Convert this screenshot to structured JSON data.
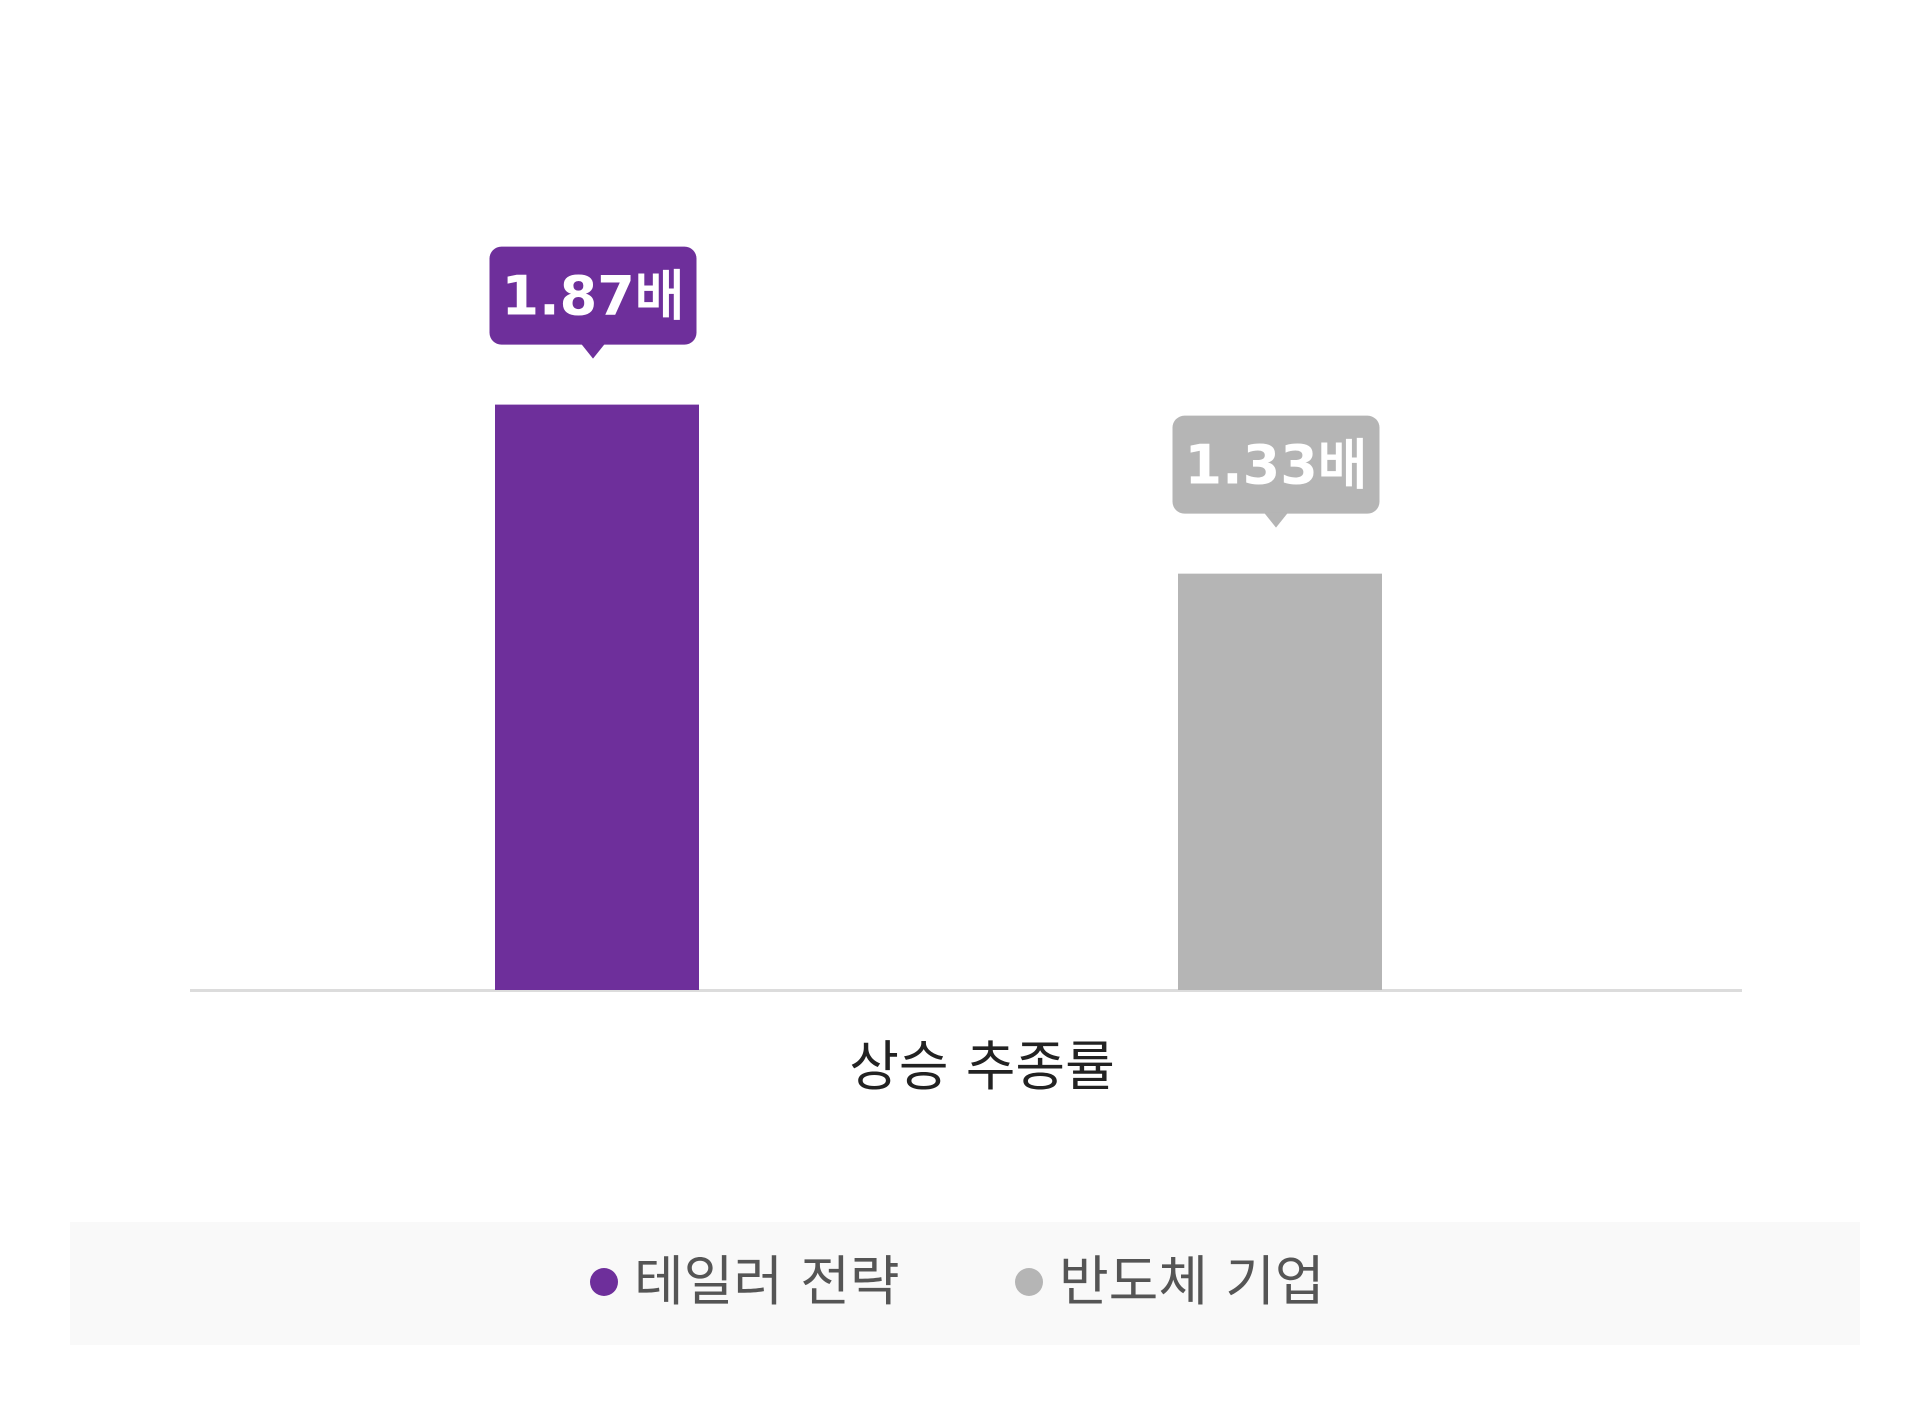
{
  "chart_data": {
    "type": "bar",
    "categories": [
      "상승 추종률"
    ],
    "series": [
      {
        "name": "테일러 전략",
        "values": [
          1.87
        ],
        "label": "1.87배",
        "color": "#6e2f9b",
        "label_text_color": "#ffffff"
      },
      {
        "name": "반도체 기업",
        "values": [
          1.33
        ],
        "label": "1.33배",
        "color": "#b5b5b5",
        "label_text_color": "#ffffff"
      }
    ],
    "ylim": [
      0,
      2.3
    ],
    "grid": false,
    "legend_position": "bottom",
    "axis_color": "#dcdcdc",
    "category_label_color": "#222222"
  },
  "legend": {
    "items": [
      {
        "label": "테일러 전략",
        "color": "#6e2f9b"
      },
      {
        "label": "반도체 기업",
        "color": "#b5b5b5"
      }
    ]
  }
}
